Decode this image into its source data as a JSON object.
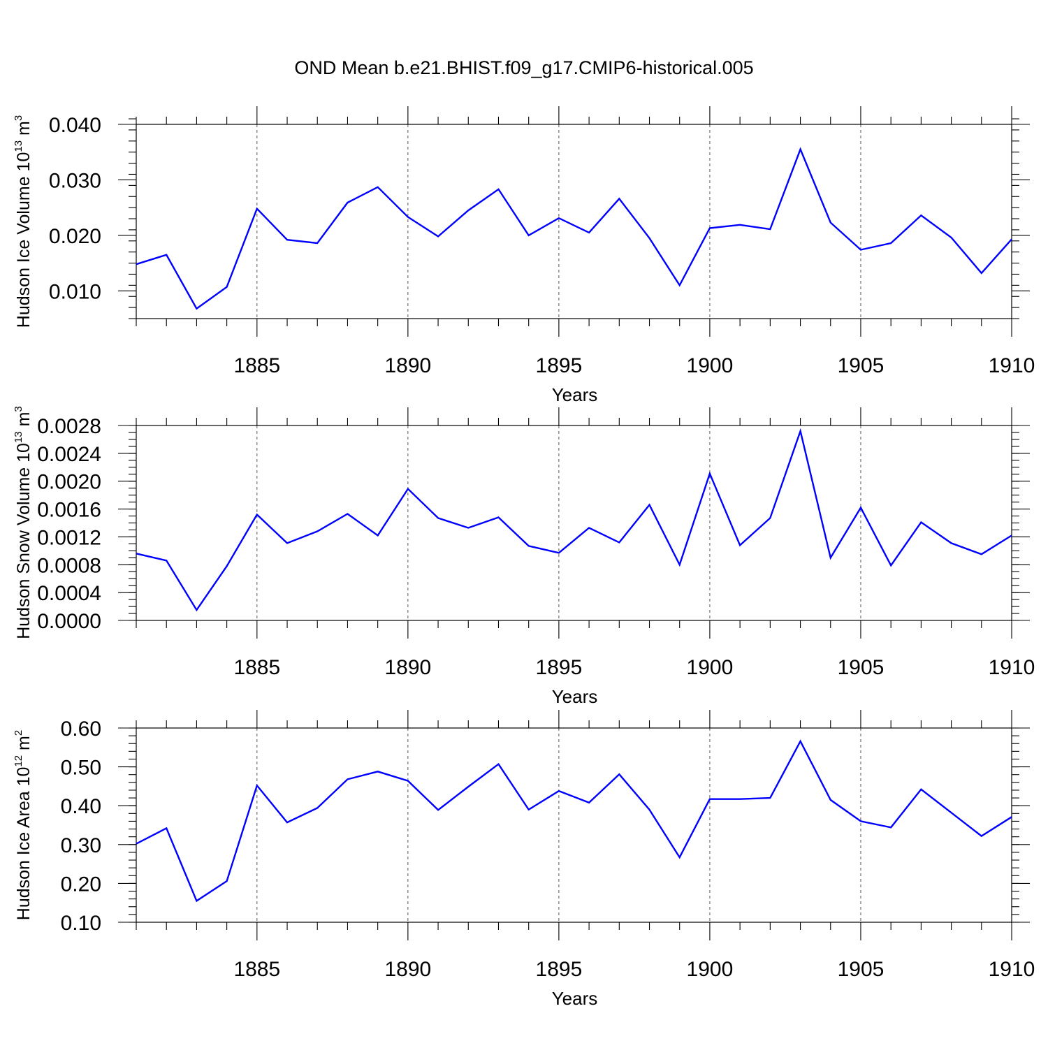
{
  "figure_title": "OND Mean b.e21.BHIST.f09_g17.CMIP6-historical.005",
  "colors": {
    "series": "#0000ff",
    "axis": "#000000",
    "grid": "#555555"
  },
  "chart_data": [
    {
      "type": "line",
      "title": "OND Mean b.e21.BHIST.f09_g17.CMIP6-historical.005",
      "xlabel": "Years",
      "ylabel": {
        "text": "Hudson Ice Volume 10",
        "exp": "13",
        "unit": " m",
        "unit_exp": "3"
      },
      "xlim": [
        1881,
        1910
      ],
      "ylim": [
        0.005,
        0.04
      ],
      "x_ticks": [
        1885,
        1890,
        1895,
        1900,
        1905,
        1910
      ],
      "y_ticks": [
        0.01,
        0.02,
        0.03,
        0.04
      ],
      "y_tick_labels": [
        "0.010",
        "0.020",
        "0.030",
        "0.040"
      ],
      "y_minor_step": 0.002,
      "grid": "vertical dashed at major x ticks",
      "x": [
        1881,
        1882,
        1883,
        1884,
        1885,
        1886,
        1887,
        1888,
        1889,
        1890,
        1891,
        1892,
        1893,
        1894,
        1895,
        1896,
        1897,
        1898,
        1899,
        1900,
        1901,
        1902,
        1903,
        1904,
        1905,
        1906,
        1907,
        1908,
        1909,
        1910
      ],
      "series": [
        {
          "name": "Hudson Ice Volume",
          "values": [
            0.0148,
            0.0165,
            0.0068,
            0.0107,
            0.0248,
            0.0192,
            0.0186,
            0.0259,
            0.0287,
            0.0233,
            0.0198,
            0.0245,
            0.0283,
            0.02,
            0.0231,
            0.0205,
            0.0266,
            0.0195,
            0.011,
            0.0213,
            0.0219,
            0.0211,
            0.0355,
            0.0223,
            0.0174,
            0.0186,
            0.0236,
            0.0196,
            0.0132,
            0.0193
          ]
        }
      ]
    },
    {
      "type": "line",
      "xlabel": "Years",
      "ylabel": {
        "text": "Hudson Snow Volume 10",
        "exp": "13",
        "unit": " m",
        "unit_exp": "3"
      },
      "xlim": [
        1881,
        1910
      ],
      "ylim": [
        0,
        0.0028
      ],
      "x_ticks": [
        1885,
        1890,
        1895,
        1900,
        1905,
        1910
      ],
      "y_ticks": [
        0,
        0.0004,
        0.0008,
        0.0012,
        0.0016,
        0.002,
        0.0024,
        0.0028
      ],
      "y_tick_labels": [
        "0.0000",
        "0.0004",
        "0.0008",
        "0.0012",
        "0.0016",
        "0.0020",
        "0.0024",
        "0.0028"
      ],
      "y_minor_step": 0.0001,
      "grid": "vertical dashed at major x ticks",
      "x": [
        1881,
        1882,
        1883,
        1884,
        1885,
        1886,
        1887,
        1888,
        1889,
        1890,
        1891,
        1892,
        1893,
        1894,
        1895,
        1896,
        1897,
        1898,
        1899,
        1900,
        1901,
        1902,
        1903,
        1904,
        1905,
        1906,
        1907,
        1908,
        1909,
        1910
      ],
      "series": [
        {
          "name": "Hudson Snow Volume",
          "values": [
            0.00096,
            0.00086,
            0.00015,
            0.00078,
            0.00152,
            0.00111,
            0.00128,
            0.00153,
            0.00122,
            0.00189,
            0.00147,
            0.00133,
            0.00148,
            0.00107,
            0.00097,
            0.00133,
            0.00112,
            0.00166,
            0.0008,
            0.00211,
            0.00108,
            0.00147,
            0.00272,
            0.0009,
            0.00162,
            0.00079,
            0.00141,
            0.00111,
            0.00095,
            0.00122
          ]
        }
      ]
    },
    {
      "type": "line",
      "xlabel": "Years",
      "ylabel": {
        "text": "Hudson Ice Area 10",
        "exp": "12",
        "unit": " m",
        "unit_exp": "2"
      },
      "xlim": [
        1881,
        1910
      ],
      "ylim": [
        0.1,
        0.6
      ],
      "x_ticks": [
        1885,
        1890,
        1895,
        1900,
        1905,
        1910
      ],
      "y_ticks": [
        0.1,
        0.2,
        0.3,
        0.4,
        0.5,
        0.6
      ],
      "y_tick_labels": [
        "0.10",
        "0.20",
        "0.30",
        "0.40",
        "0.50",
        "0.60"
      ],
      "y_minor_step": 0.02,
      "grid": "vertical dashed at major x ticks",
      "x": [
        1881,
        1882,
        1883,
        1884,
        1885,
        1886,
        1887,
        1888,
        1889,
        1890,
        1891,
        1892,
        1893,
        1894,
        1895,
        1896,
        1897,
        1898,
        1899,
        1900,
        1901,
        1902,
        1903,
        1904,
        1905,
        1906,
        1907,
        1908,
        1909,
        1910
      ],
      "series": [
        {
          "name": "Hudson Ice Area",
          "values": [
            0.302,
            0.342,
            0.155,
            0.206,
            0.452,
            0.357,
            0.394,
            0.468,
            0.488,
            0.464,
            0.389,
            0.449,
            0.507,
            0.39,
            0.438,
            0.408,
            0.481,
            0.39,
            0.267,
            0.417,
            0.417,
            0.42,
            0.566,
            0.415,
            0.36,
            0.344,
            0.442,
            0.382,
            0.322,
            0.371
          ]
        }
      ]
    }
  ]
}
